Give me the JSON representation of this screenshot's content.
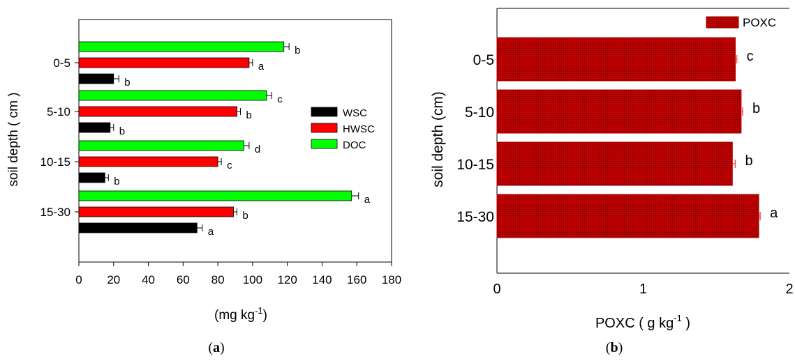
{
  "colors": {
    "WSC": "#000000",
    "HWSC": "#ff0000",
    "DOC": "#00ff00",
    "POXC": "#cc0000"
  },
  "chart_data": [
    {
      "type": "bar",
      "orientation": "horizontal",
      "panel_label": "a",
      "ylabel": "soil depth ( cm )",
      "xlabel": "(mg kg-1)",
      "xlabel_main": "(mg kg",
      "xlabel_sup": "-1",
      "xlabel_end": ")",
      "xlim": [
        0,
        180
      ],
      "xticks": [
        "0",
        "20",
        "40",
        "60",
        "80",
        "100",
        "120",
        "140",
        "160",
        "180"
      ],
      "categories": [
        "0-5",
        "5-10",
        "10-15",
        "15-30"
      ],
      "series": [
        {
          "name": "WSC",
          "color": "#000000",
          "values": [
            20,
            18,
            15,
            68
          ],
          "errors": [
            3,
            2,
            2,
            3
          ],
          "letters": [
            "b",
            "b",
            "b",
            "a"
          ]
        },
        {
          "name": "HWSC",
          "color": "#ff0000",
          "values": [
            98,
            91,
            80,
            89
          ],
          "errors": [
            2,
            2,
            2,
            2
          ],
          "letters": [
            "a",
            "b",
            "c",
            "b"
          ]
        },
        {
          "name": "DOC",
          "color": "#00ff00",
          "values": [
            118,
            108,
            95,
            157
          ],
          "errors": [
            3,
            3,
            3,
            4
          ],
          "letters": [
            "b",
            "c",
            "d",
            "a"
          ]
        }
      ],
      "legend": {
        "placement": "right",
        "entries": [
          "WSC",
          "HWSC",
          "DOC"
        ]
      },
      "grid": false
    },
    {
      "type": "bar",
      "orientation": "horizontal",
      "panel_label": "b",
      "ylabel": "soil depth (cm)",
      "xlabel": "POXC ( g kg-1 )",
      "xlabel_main": "POXC ( g kg",
      "xlabel_sup": "-1",
      "xlabel_end": " )",
      "xlim": [
        0,
        2
      ],
      "xticks": [
        "0",
        "1",
        "2"
      ],
      "categories": [
        "0-5",
        "5-10",
        "10-15",
        "15-30"
      ],
      "series": [
        {
          "name": "POXC",
          "color": "#cc0000",
          "values": [
            1.63,
            1.67,
            1.61,
            1.79
          ],
          "errors": [
            0.01,
            0.01,
            0.02,
            0.01
          ],
          "letters": [
            "c",
            "b",
            "b",
            "a"
          ]
        }
      ],
      "legend": {
        "placement": "top-right",
        "entries": [
          "POXC"
        ]
      },
      "grid": false
    }
  ]
}
